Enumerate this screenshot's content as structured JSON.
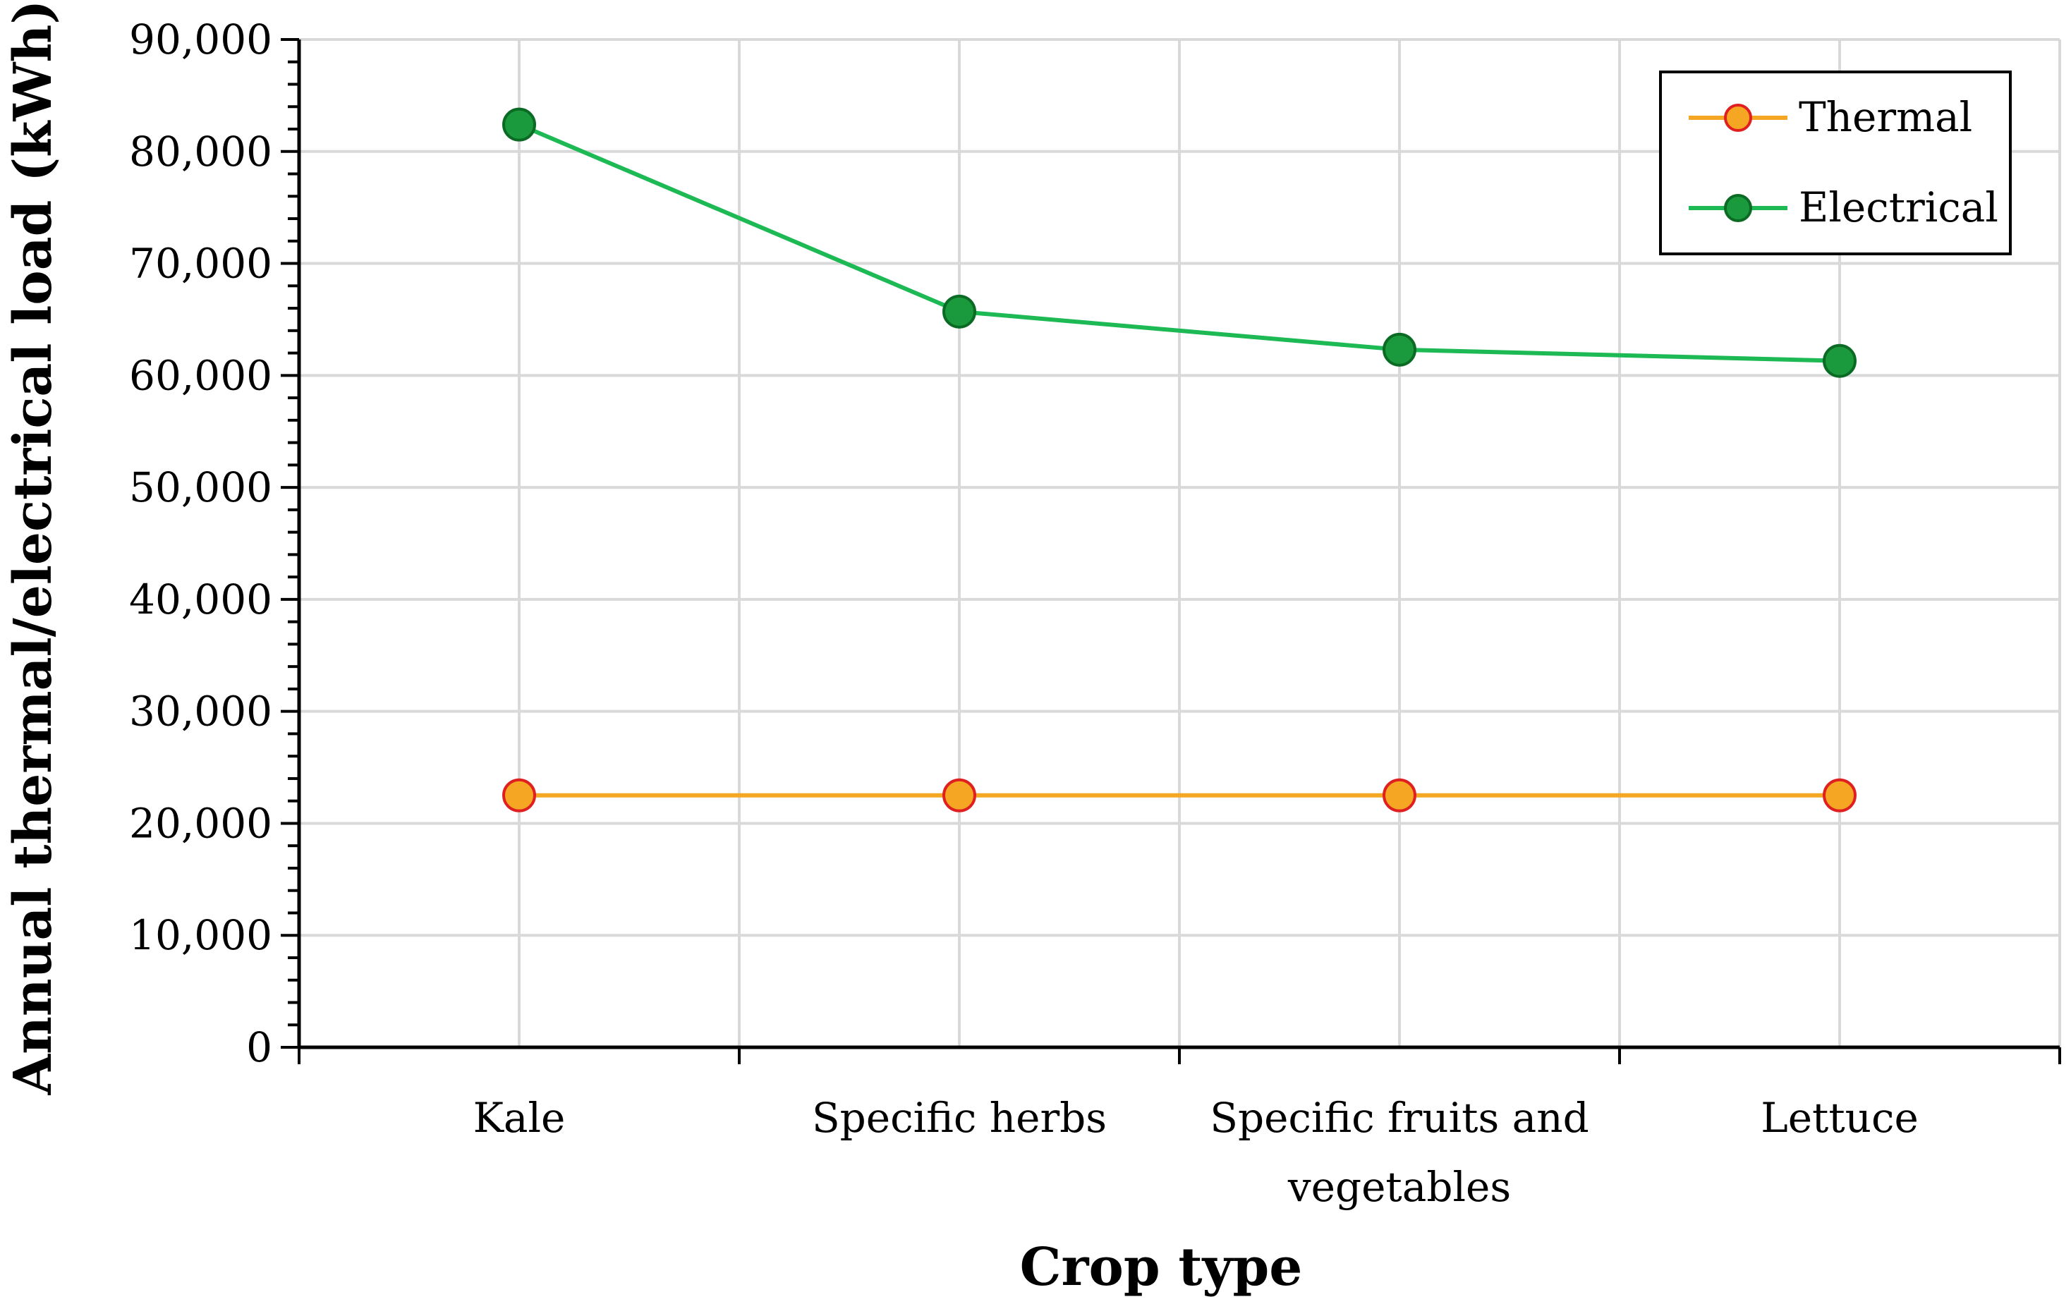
{
  "chart_data": {
    "type": "line",
    "title": "",
    "xlabel": "Crop type",
    "ylabel": "Annual thermal/electrical load (kWh)",
    "categories": [
      "Kale",
      "Specific herbs",
      "Specific fruits and vegetables",
      "Lettuce"
    ],
    "category_lines": [
      [
        "Kale"
      ],
      [
        "Specific herbs"
      ],
      [
        "Specific fruits and",
        "vegetables"
      ],
      [
        "Lettuce"
      ]
    ],
    "ylim": [
      0,
      90000
    ],
    "yticks": [
      0,
      10000,
      20000,
      30000,
      40000,
      50000,
      60000,
      70000,
      80000,
      90000
    ],
    "ytick_labels": [
      "0",
      "10,000",
      "20,000",
      "30,000",
      "40,000",
      "50,000",
      "60,000",
      "70,000",
      "80,000",
      "90,000"
    ],
    "grid": true,
    "legend_position": "top-right",
    "series": [
      {
        "name": "Thermal",
        "values": [
          22500,
          22500,
          22500,
          22500
        ],
        "line_color": "#f5a623",
        "marker_fill": "#f5a623",
        "marker_edge": "#e02020"
      },
      {
        "name": "Electrical",
        "values": [
          82400,
          65700,
          62300,
          61300
        ],
        "line_color": "#1db954",
        "marker_fill": "#1a9a3c",
        "marker_edge": "#0b6b24"
      }
    ]
  }
}
